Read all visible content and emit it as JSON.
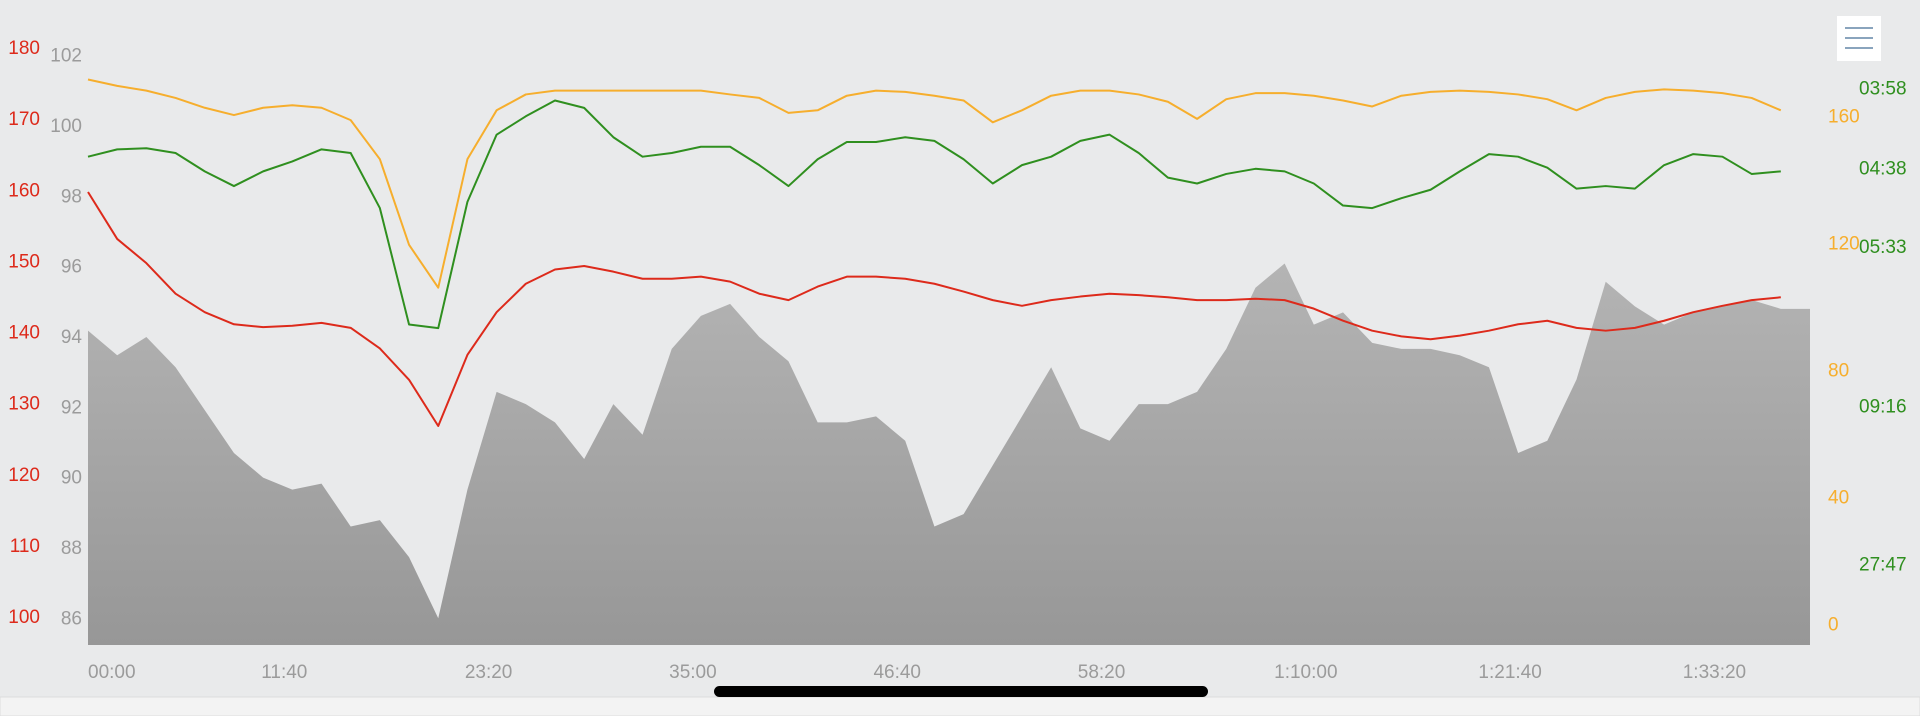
{
  "chart_data": {
    "type": "line",
    "x": [
      0,
      100,
      200,
      300,
      400,
      500,
      600,
      700,
      800,
      900,
      1000,
      1100,
      1200,
      1300,
      1400,
      1500,
      1600,
      1700,
      1800,
      1900,
      2000,
      2100,
      2200,
      2300,
      2400,
      2500,
      2600,
      2700,
      2800,
      2900,
      3000,
      3100,
      3200,
      3300,
      3400,
      3500,
      3600,
      3700,
      3800,
      3900,
      4000,
      4100,
      4200,
      4300,
      4400,
      4500,
      4600,
      4700,
      4800,
      4900,
      5000,
      5100,
      5200,
      5300,
      5400,
      5500,
      5600,
      5700,
      5800,
      5900
    ],
    "xlim": [
      0,
      5900
    ],
    "xticks": [
      {
        "value": 0,
        "label": "00:00"
      },
      {
        "value": 700,
        "label": "11:40"
      },
      {
        "value": 1400,
        "label": "23:20"
      },
      {
        "value": 2100,
        "label": "35:00"
      },
      {
        "value": 2800,
        "label": "46:40"
      },
      {
        "value": 3500,
        "label": "58:20"
      },
      {
        "value": 4200,
        "label": "1:10:00"
      },
      {
        "value": 4900,
        "label": "1:21:40"
      },
      {
        "value": 5600,
        "label": "1:33:20"
      }
    ],
    "axes": [
      {
        "side": "left",
        "color": "#dd2a1b",
        "lim": [
          96.2,
          181.7
        ],
        "ticks": [
          100,
          110,
          120,
          130,
          140,
          150,
          160,
          170,
          180
        ]
      },
      {
        "side": "left",
        "color": "#9b9b9b",
        "lim": [
          85.27,
          102.56
        ],
        "ticks": [
          86,
          88,
          90,
          92,
          94,
          96,
          98,
          100,
          102
        ]
      },
      {
        "side": "right",
        "color": "#f6ae2d",
        "lim": [
          -6.2,
          185.4
        ],
        "ticks": [
          0,
          40,
          80,
          120,
          160
        ]
      },
      {
        "side": "right",
        "color": "#2f8f1f",
        "lim": [
          0,
          16.56
        ],
        "ticks": [
          {
            "value": 15.126,
            "label": "03:58"
          },
          {
            "value": 12.95,
            "label": "04:38"
          },
          {
            "value": 10.811,
            "label": "05:33"
          },
          {
            "value": 6.475,
            "label": "09:16"
          },
          {
            "value": 2.16,
            "label": "27:47"
          }
        ]
      }
    ],
    "series": [
      {
        "style": "area",
        "axis": 1,
        "color": "#a5a5a5",
        "values": [
          94.21,
          93.51,
          94.03,
          93.17,
          91.95,
          90.73,
          90.03,
          89.69,
          89.86,
          88.64,
          88.82,
          87.77,
          86.03,
          89.69,
          92.47,
          92.12,
          91.6,
          90.56,
          92.12,
          91.25,
          93.69,
          94.63,
          94.97,
          94.03,
          93.34,
          91.6,
          91.6,
          91.77,
          91.08,
          88.64,
          88.99,
          90.38,
          91.77,
          93.17,
          91.43,
          91.08,
          92.12,
          92.12,
          92.47,
          93.69,
          95.43,
          96.12,
          94.38,
          94.73,
          93.86,
          93.69,
          93.69,
          93.51,
          93.17,
          90.73,
          91.08,
          92.82,
          95.6,
          94.9,
          94.38,
          94.73,
          94.9,
          95.08,
          94.83,
          94.83
        ]
      },
      {
        "style": "line",
        "axis": 0,
        "color": "#dd2a1b",
        "values": [
          159.9,
          153.3,
          149.9,
          145.6,
          143.0,
          141.3,
          140.9,
          141.1,
          141.5,
          140.8,
          137.9,
          133.5,
          127.0,
          137.0,
          143.0,
          147.0,
          149.0,
          149.5,
          148.7,
          147.7,
          147.7,
          148.0,
          147.3,
          145.6,
          144.7,
          146.6,
          148.0,
          148.0,
          147.7,
          147.0,
          145.9,
          144.7,
          143.9,
          144.7,
          145.2,
          145.6,
          145.4,
          145.1,
          144.7,
          144.7,
          144.9,
          144.7,
          143.5,
          141.8,
          140.4,
          139.6,
          139.2,
          139.7,
          140.4,
          141.3,
          141.8,
          140.8,
          140.4,
          140.8,
          141.8,
          143.0,
          143.9,
          144.7,
          145.1,
          null
        ]
      },
      {
        "style": "line",
        "axis": 2,
        "color": "#f6ae2d",
        "values": [
          172.0,
          170.0,
          168.5,
          166.2,
          163.1,
          160.8,
          163.1,
          163.9,
          163.1,
          159.2,
          146.9,
          119.9,
          106.4,
          146.9,
          162.3,
          167.3,
          168.5,
          168.5,
          168.5,
          168.5,
          168.5,
          168.5,
          167.3,
          166.2,
          161.5,
          162.3,
          166.9,
          168.5,
          168.1,
          166.9,
          165.4,
          158.5,
          162.3,
          166.9,
          168.5,
          168.5,
          167.3,
          165.0,
          159.6,
          165.8,
          167.7,
          167.7,
          166.9,
          165.4,
          163.5,
          166.9,
          168.1,
          168.5,
          168.1,
          167.3,
          165.8,
          162.3,
          166.2,
          168.1,
          168.9,
          168.5,
          167.7,
          166.2,
          162.3,
          null
        ]
      },
      {
        "style": "line",
        "axis": 3,
        "color": "#2f8f1f",
        "values": [
          13.3,
          13.5,
          13.53,
          13.4,
          12.9,
          12.5,
          12.9,
          13.17,
          13.5,
          13.4,
          11.9,
          8.73,
          8.63,
          12.07,
          13.9,
          14.4,
          14.83,
          14.63,
          13.83,
          13.3,
          13.4,
          13.57,
          13.57,
          13.07,
          12.5,
          13.23,
          13.7,
          13.7,
          13.83,
          13.73,
          13.23,
          12.57,
          13.07,
          13.3,
          13.73,
          13.9,
          13.4,
          12.73,
          12.57,
          12.83,
          12.97,
          12.9,
          12.57,
          11.97,
          11.9,
          12.17,
          12.4,
          12.9,
          13.37,
          13.3,
          13.0,
          12.43,
          12.5,
          12.43,
          13.07,
          13.37,
          13.3,
          12.83,
          12.9,
          null
        ]
      }
    ]
  }
}
